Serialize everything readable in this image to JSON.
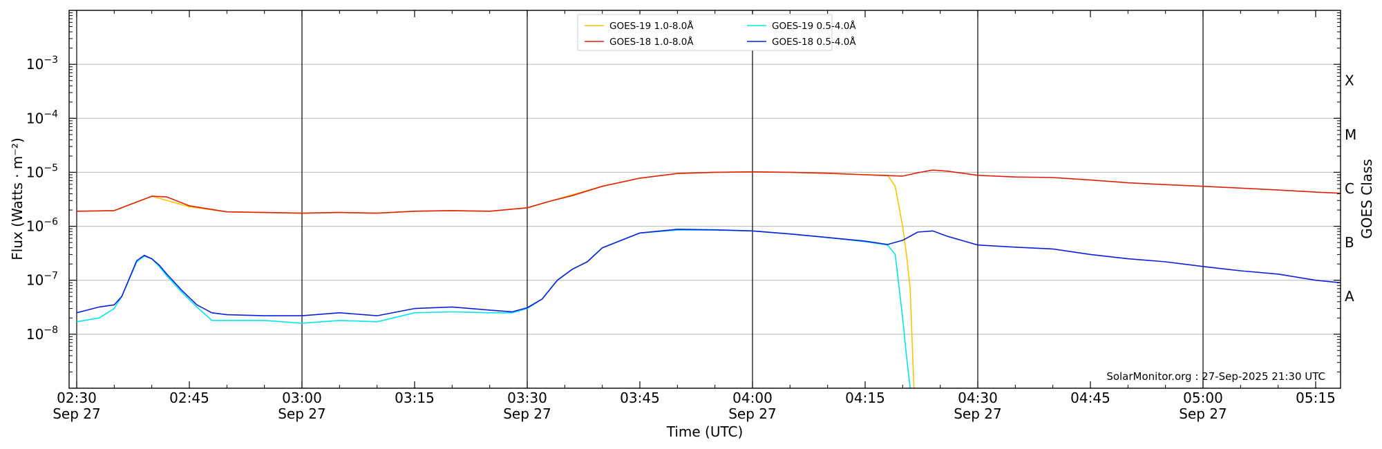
{
  "chart_data": {
    "type": "line",
    "xlabel": "Time (UTC)",
    "ylabel": "Flux (Watts · m⁻²)",
    "right_label": "GOES Class",
    "credit": "SolarMonitor.org : 27-Sep-2025 21:30 UTC",
    "x_range_minutes": [
      0,
      170
    ],
    "x_offset_minutes_at_left": -1,
    "y_scale": "log",
    "ylim": [
      1e-09,
      0.01
    ],
    "grid": "horizontal at decades; vertical lines every 30 min",
    "legend_position": "top-center",
    "x_ticks": [
      {
        "label": "02:30",
        "sub": "Sep 27"
      },
      {
        "label": "02:45",
        "sub": ""
      },
      {
        "label": "03:00",
        "sub": "Sep 27"
      },
      {
        "label": "03:15",
        "sub": ""
      },
      {
        "label": "03:30",
        "sub": "Sep 27"
      },
      {
        "label": "03:45",
        "sub": ""
      },
      {
        "label": "04:00",
        "sub": "Sep 27"
      },
      {
        "label": "04:15",
        "sub": ""
      },
      {
        "label": "04:30",
        "sub": "Sep 27"
      },
      {
        "label": "04:45",
        "sub": ""
      },
      {
        "label": "05:00",
        "sub": "Sep 27"
      },
      {
        "label": "05:15",
        "sub": ""
      }
    ],
    "y_ticks": [
      {
        "value": 1e-08,
        "label": "10",
        "exp": "−8"
      },
      {
        "value": 1e-07,
        "label": "10",
        "exp": "−7"
      },
      {
        "value": 1e-06,
        "label": "10",
        "exp": "−6"
      },
      {
        "value": 1e-05,
        "label": "10",
        "exp": "−5"
      },
      {
        "value": 0.0001,
        "label": "10",
        "exp": "−4"
      },
      {
        "value": 0.001,
        "label": "10",
        "exp": "−3"
      }
    ],
    "goes_classes": [
      {
        "label": "A",
        "value": 5e-08
      },
      {
        "label": "B",
        "value": 5e-07
      },
      {
        "label": "C",
        "value": 5e-06
      },
      {
        "label": "M",
        "value": 5e-05
      },
      {
        "label": "X",
        "value": 0.0005
      }
    ],
    "series": [
      {
        "name": "GOES-19 1.0-8.0Å",
        "color": "#ffc000",
        "x": [
          0,
          5,
          10,
          15,
          20,
          25,
          30,
          35,
          40,
          45,
          50,
          55,
          60,
          65,
          70,
          75,
          80,
          85,
          90,
          95,
          100,
          105,
          108,
          109,
          110,
          110.5,
          111,
          111.5
        ],
        "y": [
          1.9e-06,
          1.95e-06,
          3.6e-06,
          2.3e-06,
          1.85e-06,
          1.8e-06,
          1.75e-06,
          1.8e-06,
          1.75e-06,
          1.9e-06,
          1.95e-06,
          1.9e-06,
          2.2e-06,
          3.5e-06,
          5.5e-06,
          7.8e-06,
          9.5e-06,
          1e-05,
          1.02e-05,
          1e-05,
          9.6e-06,
          9e-06,
          8.8e-06,
          5.5e-06,
          1e-06,
          3e-07,
          7e-08,
          1e-09
        ]
      },
      {
        "name": "GOES-18 1.0-8.0Å",
        "color": "#e0200a",
        "x": [
          0,
          5,
          7,
          10,
          12,
          15,
          20,
          25,
          30,
          35,
          40,
          45,
          50,
          55,
          60,
          63,
          66,
          70,
          75,
          80,
          85,
          90,
          95,
          100,
          105,
          108,
          110,
          112,
          114,
          116,
          120,
          125,
          130,
          135,
          140,
          145,
          150,
          155,
          160,
          165,
          170
        ],
        "y": [
          1.9e-06,
          1.95e-06,
          2.5e-06,
          3.6e-06,
          3.5e-06,
          2.4e-06,
          1.85e-06,
          1.8e-06,
          1.75e-06,
          1.8e-06,
          1.75e-06,
          1.9e-06,
          1.95e-06,
          1.9e-06,
          2.2e-06,
          2.9e-06,
          3.7e-06,
          5.5e-06,
          7.8e-06,
          9.5e-06,
          1e-05,
          1.02e-05,
          1e-05,
          9.6e-06,
          9e-06,
          8.7e-06,
          8.5e-06,
          9.8e-06,
          1.1e-05,
          1.05e-05,
          8.8e-06,
          8.2e-06,
          8e-06,
          7.2e-06,
          6.4e-06,
          5.9e-06,
          5.5e-06,
          5.1e-06,
          4.7e-06,
          4.3e-06,
          4e-06
        ]
      },
      {
        "name": "GOES-19 0.5-4.0Å",
        "color": "#00e5ee",
        "x": [
          0,
          3,
          5,
          6,
          8,
          9,
          10,
          11,
          12,
          14,
          16,
          18,
          20,
          25,
          30,
          35,
          40,
          45,
          50,
          55,
          58,
          60,
          62,
          64,
          66,
          68,
          70,
          75,
          80,
          85,
          90,
          95,
          100,
          105,
          108,
          109,
          110,
          110.5,
          111
        ],
        "y": [
          1.7e-08,
          2e-08,
          3e-08,
          5e-08,
          2.2e-07,
          2.8e-07,
          2.5e-07,
          1.8e-07,
          1.2e-07,
          6e-08,
          3.2e-08,
          1.8e-08,
          1.8e-08,
          1.8e-08,
          1.6e-08,
          1.8e-08,
          1.7e-08,
          2.5e-08,
          2.6e-08,
          2.5e-08,
          2.5e-08,
          3e-08,
          4.5e-08,
          1e-07,
          1.6e-07,
          2.2e-07,
          4e-07,
          7.5e-07,
          8.5e-07,
          8.5e-07,
          8.2e-07,
          7.2e-07,
          6.2e-07,
          5.2e-07,
          4.5e-07,
          3e-07,
          2e-08,
          4e-09,
          1e-09
        ]
      },
      {
        "name": "GOES-18 0.5-4.0Å",
        "color": "#0a1ee0",
        "x": [
          0,
          3,
          5,
          6,
          8,
          9,
          10,
          11,
          12,
          14,
          16,
          18,
          20,
          25,
          30,
          35,
          40,
          45,
          50,
          55,
          58,
          60,
          62,
          64,
          66,
          68,
          70,
          75,
          80,
          85,
          90,
          95,
          100,
          105,
          108,
          110,
          112,
          114,
          116,
          120,
          125,
          130,
          135,
          140,
          145,
          150,
          155,
          160,
          165,
          170
        ],
        "y": [
          2.5e-08,
          3.2e-08,
          3.5e-08,
          5e-08,
          2.3e-07,
          2.9e-07,
          2.5e-07,
          1.9e-07,
          1.3e-07,
          6.5e-08,
          3.5e-08,
          2.5e-08,
          2.3e-08,
          2.2e-08,
          2.2e-08,
          2.5e-08,
          2.2e-08,
          3e-08,
          3.2e-08,
          2.8e-08,
          2.6e-08,
          3.1e-08,
          4.5e-08,
          1e-07,
          1.6e-07,
          2.2e-07,
          4e-07,
          7.5e-07,
          8.8e-07,
          8.6e-07,
          8.2e-07,
          7.2e-07,
          6.2e-07,
          5.3e-07,
          4.6e-07,
          5.5e-07,
          7.8e-07,
          8.2e-07,
          6.5e-07,
          4.5e-07,
          4.1e-07,
          3.8e-07,
          3e-07,
          2.5e-07,
          2.2e-07,
          1.8e-07,
          1.5e-07,
          1.3e-07,
          1e-07,
          8.5e-08
        ]
      }
    ]
  }
}
